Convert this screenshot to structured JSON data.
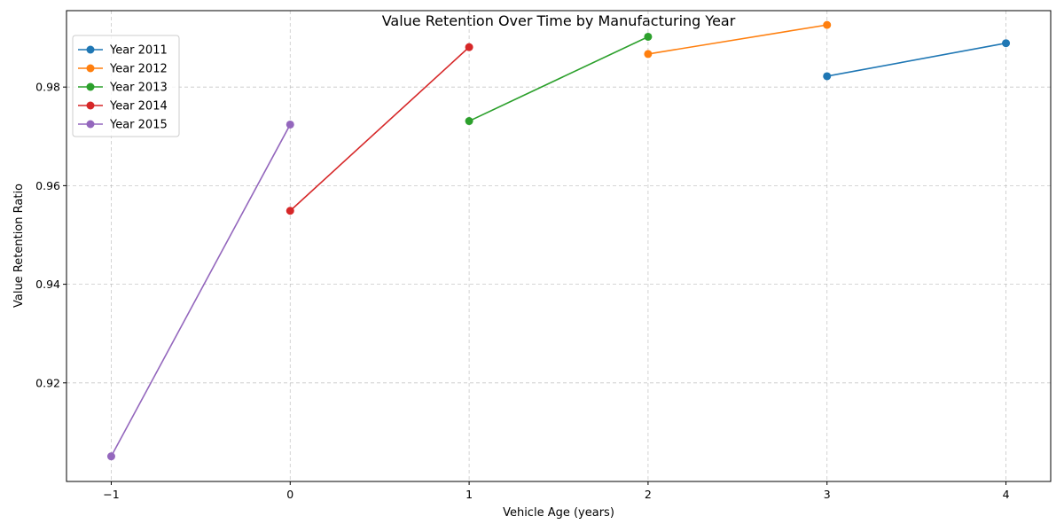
{
  "chart_data": {
    "type": "line",
    "title": "Value Retention Over Time by Manufacturing Year",
    "xlabel": "Vehicle Age (years)",
    "ylabel": "Value Retention Ratio",
    "xlim": [
      -1.25,
      4.25
    ],
    "ylim": [
      0.9,
      0.9955
    ],
    "xticks": [
      -1,
      0,
      1,
      2,
      3,
      4
    ],
    "xtick_labels": [
      "−1",
      "0",
      "1",
      "2",
      "3",
      "4"
    ],
    "yticks": [
      0.92,
      0.94,
      0.96,
      0.98
    ],
    "ytick_labels": [
      "0.92",
      "0.94",
      "0.96",
      "0.98"
    ],
    "grid": true,
    "legend_position": "top-left",
    "series": [
      {
        "name": "Year 2011",
        "color": "#1f77b4",
        "x": [
          3,
          4
        ],
        "y": [
          0.9822,
          0.9889
        ]
      },
      {
        "name": "Year 2012",
        "color": "#ff7f0e",
        "x": [
          2,
          3
        ],
        "y": [
          0.9867,
          0.9926
        ]
      },
      {
        "name": "Year 2013",
        "color": "#2ca02c",
        "x": [
          1,
          2
        ],
        "y": [
          0.9731,
          0.9902
        ]
      },
      {
        "name": "Year 2014",
        "color": "#d62728",
        "x": [
          0,
          1
        ],
        "y": [
          0.9549,
          0.9881
        ]
      },
      {
        "name": "Year 2015",
        "color": "#9467bd",
        "x": [
          -1,
          0
        ],
        "y": [
          0.9051,
          0.9724
        ]
      }
    ]
  }
}
